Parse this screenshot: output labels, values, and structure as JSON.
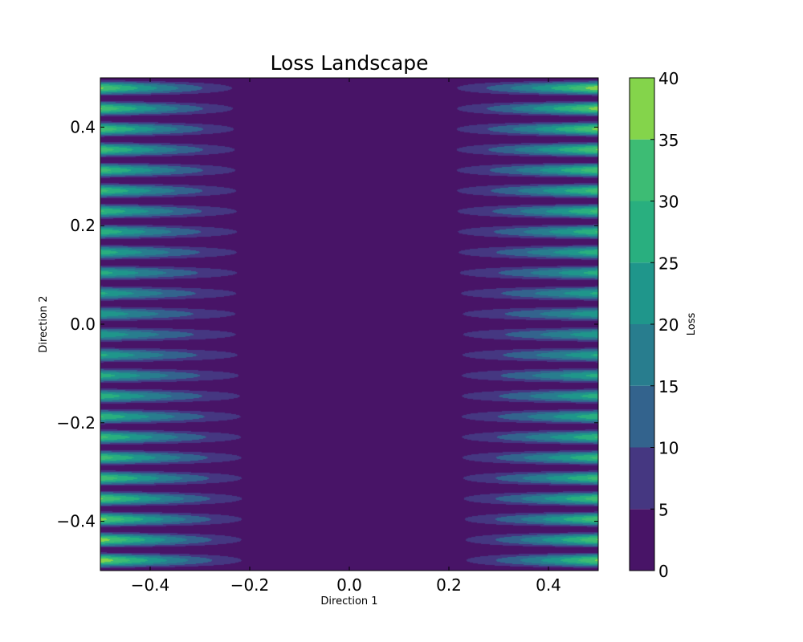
{
  "chart_data": {
    "type": "contourf",
    "title": "Loss Landscape",
    "xlabel": "Direction 1",
    "ylabel": "Direction 2",
    "xlim": [
      -0.5,
      0.5
    ],
    "ylim": [
      -0.5,
      0.5
    ],
    "x_ticks": [
      -0.4,
      -0.2,
      0.0,
      0.2,
      0.4
    ],
    "y_ticks": [
      -0.4,
      -0.2,
      0.0,
      0.2,
      0.4
    ],
    "x_tick_labels": [
      "−0.4",
      "−0.2",
      "0.0",
      "0.2",
      "0.4"
    ],
    "y_tick_labels": [
      "−0.4",
      "−0.2",
      "0.0",
      "0.2",
      "0.4"
    ],
    "grid": false,
    "colorbar": {
      "label": "Loss",
      "ticks": [
        0,
        5,
        10,
        15,
        20,
        25,
        30,
        35,
        40
      ],
      "tick_labels": [
        "0",
        "5",
        "10",
        "15",
        "20",
        "25",
        "30",
        "35",
        "40"
      ],
      "levels": [
        0,
        5,
        10,
        15,
        20,
        25,
        30,
        35,
        40
      ],
      "colors": [
        "#481467",
        "#453781",
        "#33638d",
        "#287d8e",
        "#1f968b",
        "#29af7f",
        "#3dbc74",
        "#84d44b",
        "#dce319"
      ]
    },
    "surface": {
      "description_fields": "loss grows with |x|, ridged in y",
      "ridge_count": 24,
      "left_amplitude": 40,
      "right_amplitude": 40,
      "center_x": 0.0
    }
  }
}
